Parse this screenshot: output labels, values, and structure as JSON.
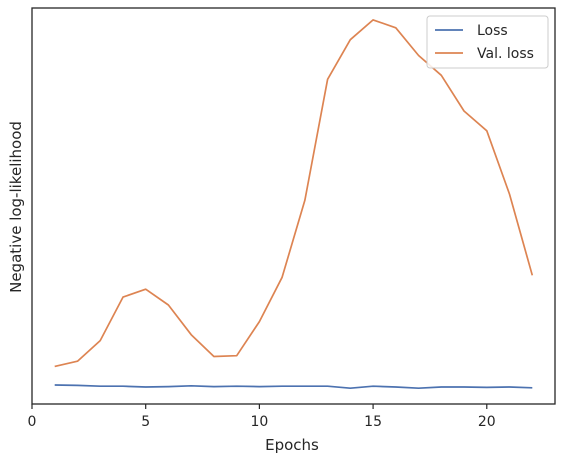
{
  "chart_data": {
    "type": "line",
    "xlabel": "Epochs",
    "ylabel": "Negative log-likelihood",
    "xlim": [
      0,
      23
    ],
    "ylim": [
      0,
      1
    ],
    "xticks": [
      0,
      5,
      10,
      15,
      20
    ],
    "y_tick_labels_shown": false,
    "grid": false,
    "legend_position": "top-right",
    "x": [
      1,
      2,
      3,
      4,
      5,
      6,
      7,
      8,
      9,
      10,
      11,
      12,
      13,
      14,
      15,
      16,
      17,
      18,
      19,
      20,
      21,
      22
    ],
    "series": [
      {
        "name": "Loss",
        "color": "#4c72b0",
        "values": [
          0.048,
          0.047,
          0.045,
          0.045,
          0.043,
          0.044,
          0.046,
          0.044,
          0.045,
          0.044,
          0.045,
          0.045,
          0.045,
          0.04,
          0.045,
          0.043,
          0.04,
          0.043,
          0.043,
          0.042,
          0.043,
          0.041
        ]
      },
      {
        "name": "Val. loss",
        "color": "#dd8452",
        "values": [
          0.095,
          0.108,
          0.16,
          0.27,
          0.29,
          0.25,
          0.175,
          0.12,
          0.122,
          0.208,
          0.32,
          0.515,
          0.82,
          0.92,
          0.97,
          0.95,
          0.88,
          0.83,
          0.74,
          0.69,
          0.53,
          0.325
        ]
      }
    ]
  }
}
